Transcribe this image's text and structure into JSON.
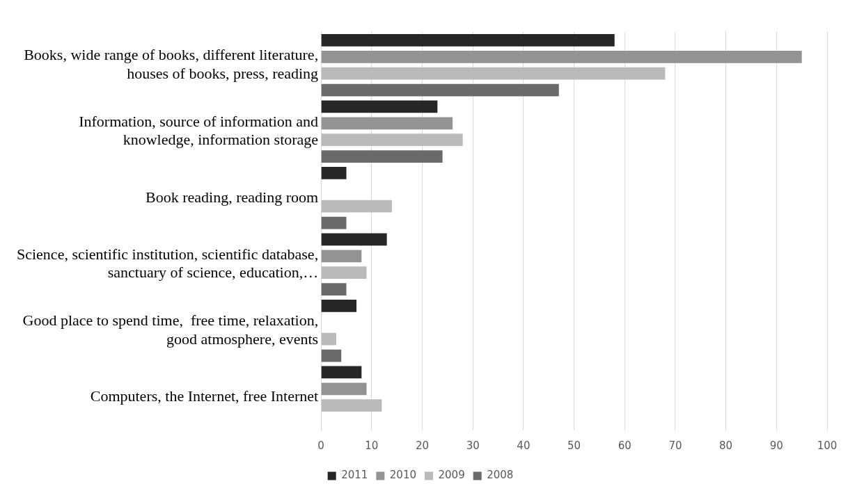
{
  "chart_data": {
    "type": "bar",
    "orientation": "horizontal",
    "categories": [
      "Books, wide range of books, different literature, houses of books, press, reading",
      "Information, source of information and knowledge, information storage",
      "Book reading, reading room",
      "Science, scientific institution, scientific database, sanctuary of science, education,…",
      "Good place to spend time,  free time, relaxation, good atmosphere, events",
      "Computers, the Internet, free Internet"
    ],
    "series": [
      {
        "name": "2011",
        "color": "#262626",
        "values": [
          58,
          23,
          5,
          13,
          7,
          8
        ]
      },
      {
        "name": "2010",
        "color": "#939393",
        "values": [
          95,
          26,
          null,
          8,
          null,
          9
        ]
      },
      {
        "name": "2009",
        "color": "#bababa",
        "values": [
          68,
          28,
          14,
          9,
          3,
          12
        ]
      },
      {
        "name": "2008",
        "color": "#6a6a6a",
        "values": [
          47,
          24,
          5,
          5,
          4,
          null
        ]
      }
    ],
    "xlim": [
      0,
      100
    ],
    "xticks": [
      0,
      10,
      20,
      30,
      40,
      50,
      60,
      70,
      80,
      90,
      100
    ],
    "grid": "x",
    "legend": "bottom"
  }
}
